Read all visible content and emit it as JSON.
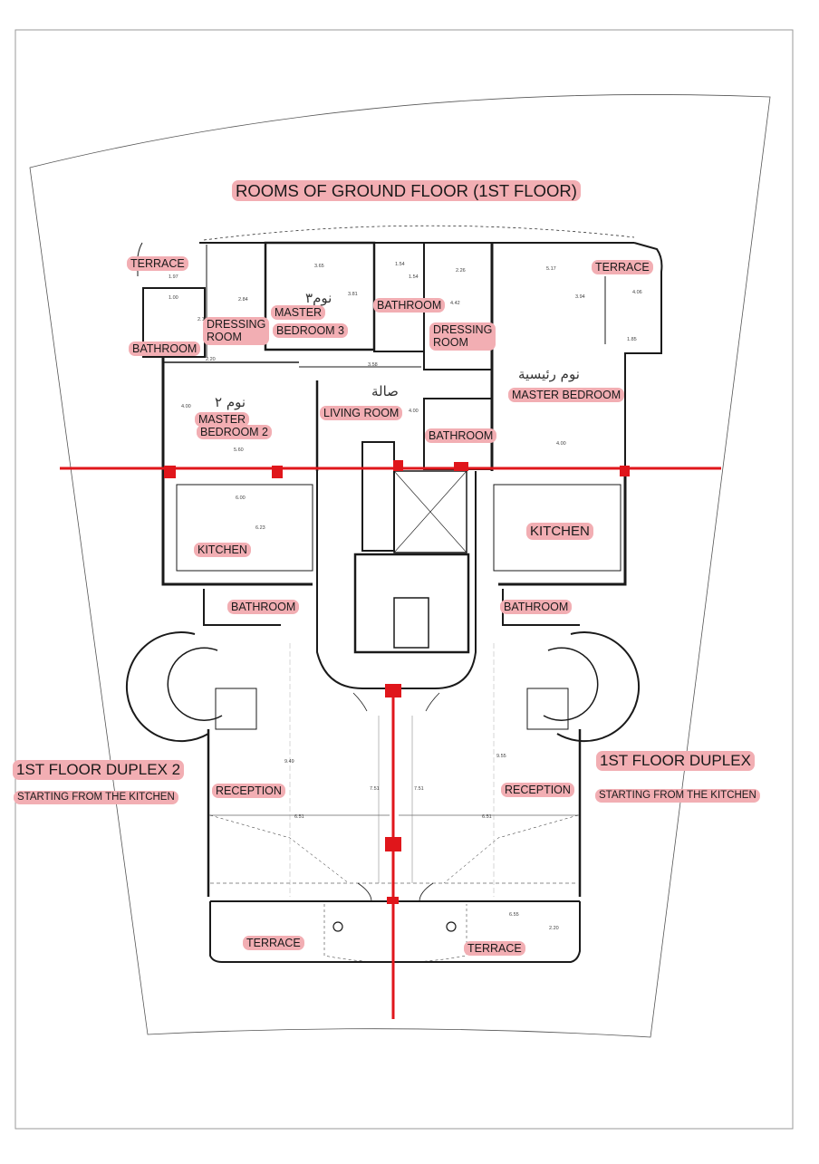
{
  "title": "ROOMS OF GROUND FLOOR (1ST FLOOR)",
  "left_unit": {
    "name": "1ST FLOOR DUPLEX 2",
    "note": "STARTING FROM THE KITCHEN",
    "rooms": {
      "terrace_top": "TERRACE",
      "bathroom_top": "BATHROOM",
      "dressing_line1": "DRESSING",
      "dressing_line2": "ROOM",
      "master_bed3_line1": "MASTER",
      "master_bed3_line2": "BEDROOM 3",
      "master_bed3_arabic": "نوم٣",
      "master_bed2_line1": "MASTER",
      "master_bed2_line2": "BEDROOM 2",
      "master_bed2_arabic": "نوم ٢",
      "kitchen": "KITCHEN",
      "bathroom_bottom": "BATHROOM",
      "reception": "RECEPTION",
      "terrace_bottom": "TERRACE"
    }
  },
  "center": {
    "bathroom_top": "BATHROOM",
    "dressing_line1": "DRESSING",
    "dressing_line2": "ROOM",
    "living_room": "LIVING ROOM",
    "living_arabic": "صالة",
    "bathroom_mid": "BATHROOM"
  },
  "right_unit": {
    "name": "1ST FLOOR DUPLEX",
    "note": "STARTING FROM THE KITCHEN",
    "rooms": {
      "terrace_top": "TERRACE",
      "master_bedroom": "MASTER BEDROOM",
      "master_bedroom_arabic": "نوم رئيسية",
      "kitchen": "KITCHEN",
      "bathroom_bottom": "BATHROOM",
      "reception": "RECEPTION",
      "terrace_bottom": "TERRACE"
    }
  },
  "dimensions": [
    "1.97",
    "1.00",
    "2.12",
    "2.20",
    "2.84",
    "3.65",
    "3.81",
    "1.54",
    "1.54",
    "2.26",
    "4.42",
    "3.58",
    "5.17",
    "3.94",
    "4.06",
    "1.85",
    "4.00",
    "5.60",
    "4.00",
    "4.00",
    "6.00",
    "6.23",
    "7.51",
    "7.51",
    "9.49",
    "9.55",
    "6.51",
    "6.51",
    "6.55",
    "2.20"
  ],
  "colors": {
    "label_bg": "#f2aeb3",
    "wall": "#1a1a1a",
    "section_line": "#e0161b",
    "column": "#e0161b"
  }
}
